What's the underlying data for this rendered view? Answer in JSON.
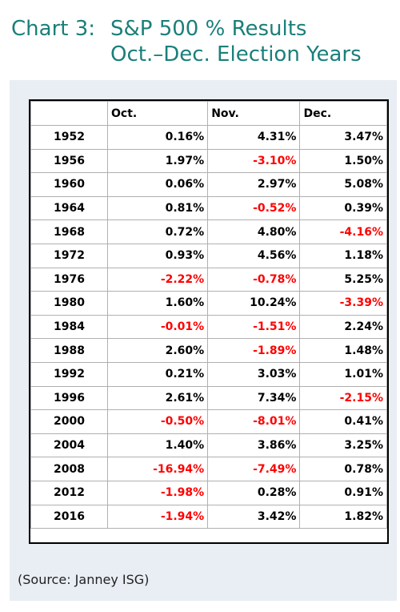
{
  "title": {
    "line1_label": "Chart 3:",
    "line1_text": "S&P 500 % Results",
    "line2_text": "Oct.–Dec. Election Years"
  },
  "source": "(Source: Janney ISG)",
  "colors": {
    "title": "#1a7f7a",
    "negative": "#ff0000",
    "panel": "#e9eef5"
  },
  "chart_data": {
    "type": "table",
    "columns": [
      "",
      "Oct.",
      "Nov.",
      "Dec."
    ],
    "rows": [
      [
        "1952",
        "0.16%",
        "4.31%",
        "3.47%"
      ],
      [
        "1956",
        "1.97%",
        "-3.10%",
        "1.50%"
      ],
      [
        "1960",
        "0.06%",
        "2.97%",
        "5.08%"
      ],
      [
        "1964",
        "0.81%",
        "-0.52%",
        "0.39%"
      ],
      [
        "1968",
        "0.72%",
        "4.80%",
        "-4.16%"
      ],
      [
        "1972",
        "0.93%",
        "4.56%",
        "1.18%"
      ],
      [
        "1976",
        "-2.22%",
        "-0.78%",
        "5.25%"
      ],
      [
        "1980",
        "1.60%",
        "10.24%",
        "-3.39%"
      ],
      [
        "1984",
        "-0.01%",
        "-1.51%",
        "2.24%"
      ],
      [
        "1988",
        "2.60%",
        "-1.89%",
        "1.48%"
      ],
      [
        "1992",
        "0.21%",
        "3.03%",
        "1.01%"
      ],
      [
        "1996",
        "2.61%",
        "7.34%",
        "-2.15%"
      ],
      [
        "2000",
        "-0.50%",
        "-8.01%",
        "0.41%"
      ],
      [
        "2004",
        "1.40%",
        "3.86%",
        "3.25%"
      ],
      [
        "2008",
        "-16.94%",
        "-7.49%",
        "0.78%"
      ],
      [
        "2012",
        "-1.98%",
        "0.28%",
        "0.91%"
      ],
      [
        "2016",
        "-1.94%",
        "3.42%",
        "1.82%"
      ]
    ]
  }
}
